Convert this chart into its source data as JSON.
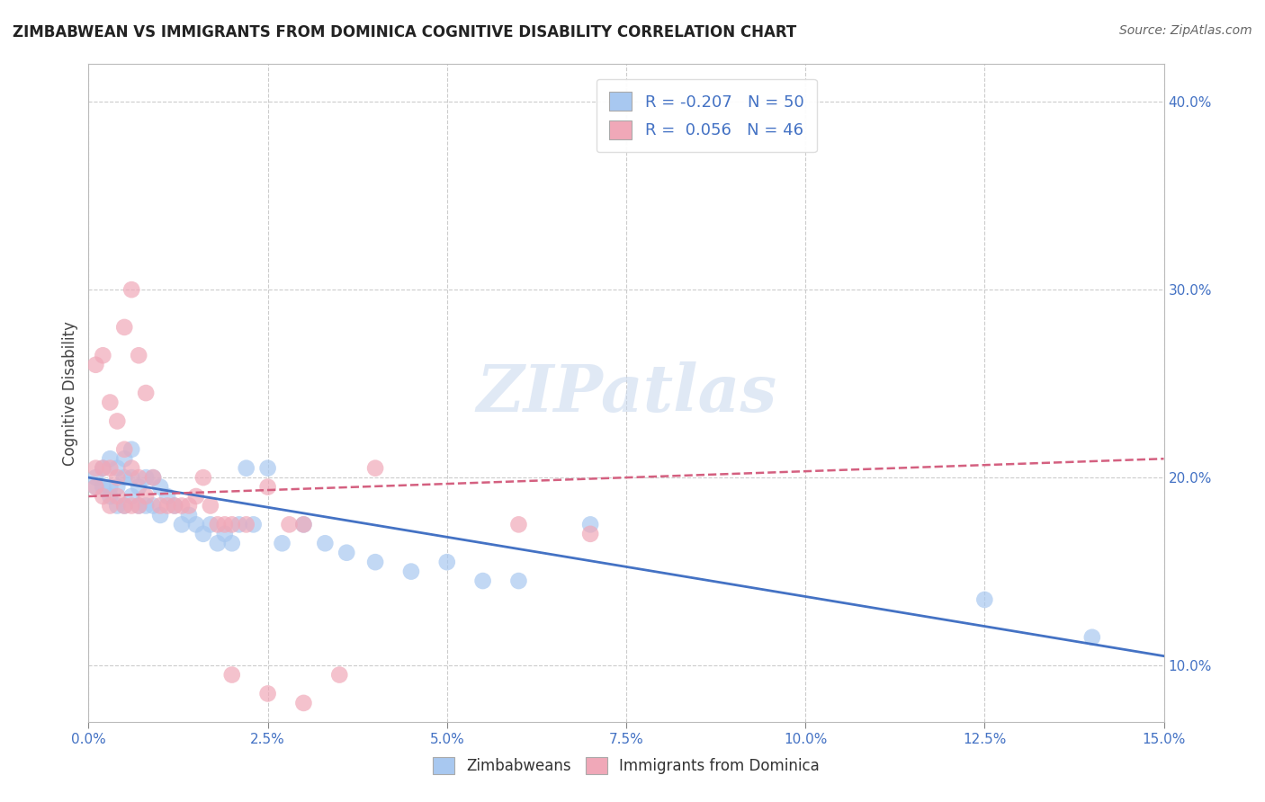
{
  "title": "ZIMBABWEAN VS IMMIGRANTS FROM DOMINICA COGNITIVE DISABILITY CORRELATION CHART",
  "source": "Source: ZipAtlas.com",
  "ylabel": "Cognitive Disability",
  "xlim": [
    0.0,
    0.15
  ],
  "ylim": [
    0.07,
    0.42
  ],
  "xtick_vals": [
    0.0,
    0.025,
    0.05,
    0.075,
    0.1,
    0.125,
    0.15
  ],
  "xtick_minor_count": 10,
  "ytick_vals": [
    0.1,
    0.2,
    0.3,
    0.4
  ],
  "series1_color": "#a8c8f0",
  "series2_color": "#f0a8b8",
  "line1_color": "#4472c4",
  "line2_color": "#d46080",
  "legend1_label": "R = -0.207   N = 50",
  "legend2_label": "R =  0.056   N = 46",
  "legend_label1": "Zimbabweans",
  "legend_label2": "Immigrants from Dominica",
  "watermark": "ZIPatlas",
  "blue_scatter_x": [
    0.001,
    0.001,
    0.002,
    0.002,
    0.003,
    0.003,
    0.003,
    0.004,
    0.004,
    0.004,
    0.005,
    0.005,
    0.005,
    0.006,
    0.006,
    0.006,
    0.007,
    0.007,
    0.008,
    0.008,
    0.009,
    0.009,
    0.01,
    0.01,
    0.011,
    0.012,
    0.013,
    0.014,
    0.015,
    0.016,
    0.017,
    0.018,
    0.019,
    0.02,
    0.021,
    0.022,
    0.023,
    0.025,
    0.027,
    0.03,
    0.033,
    0.036,
    0.04,
    0.045,
    0.05,
    0.055,
    0.06,
    0.07,
    0.125,
    0.14
  ],
  "blue_scatter_y": [
    0.195,
    0.2,
    0.195,
    0.205,
    0.19,
    0.195,
    0.21,
    0.185,
    0.195,
    0.205,
    0.185,
    0.2,
    0.21,
    0.19,
    0.2,
    0.215,
    0.185,
    0.195,
    0.185,
    0.2,
    0.185,
    0.2,
    0.18,
    0.195,
    0.19,
    0.185,
    0.175,
    0.18,
    0.175,
    0.17,
    0.175,
    0.165,
    0.17,
    0.165,
    0.175,
    0.205,
    0.175,
    0.205,
    0.165,
    0.175,
    0.165,
    0.16,
    0.155,
    0.15,
    0.155,
    0.145,
    0.145,
    0.175,
    0.135,
    0.115
  ],
  "pink_scatter_x": [
    0.001,
    0.001,
    0.002,
    0.002,
    0.003,
    0.003,
    0.004,
    0.004,
    0.005,
    0.005,
    0.006,
    0.006,
    0.007,
    0.007,
    0.008,
    0.009,
    0.01,
    0.011,
    0.012,
    0.013,
    0.014,
    0.015,
    0.016,
    0.017,
    0.018,
    0.019,
    0.02,
    0.022,
    0.025,
    0.028,
    0.001,
    0.002,
    0.003,
    0.004,
    0.005,
    0.006,
    0.007,
    0.008,
    0.03,
    0.04,
    0.06,
    0.07,
    0.02,
    0.025,
    0.03,
    0.035
  ],
  "pink_scatter_y": [
    0.195,
    0.205,
    0.19,
    0.205,
    0.185,
    0.205,
    0.19,
    0.2,
    0.185,
    0.215,
    0.185,
    0.205,
    0.185,
    0.2,
    0.19,
    0.2,
    0.185,
    0.185,
    0.185,
    0.185,
    0.185,
    0.19,
    0.2,
    0.185,
    0.175,
    0.175,
    0.175,
    0.175,
    0.195,
    0.175,
    0.26,
    0.265,
    0.24,
    0.23,
    0.28,
    0.3,
    0.265,
    0.245,
    0.175,
    0.205,
    0.175,
    0.17,
    0.095,
    0.085,
    0.08,
    0.095
  ],
  "blue_line_x0": 0.0,
  "blue_line_x1": 0.15,
  "blue_line_y0": 0.2,
  "blue_line_y1": 0.105,
  "pink_line_x0": 0.0,
  "pink_line_x1": 0.15,
  "pink_line_y0": 0.19,
  "pink_line_y1": 0.21
}
